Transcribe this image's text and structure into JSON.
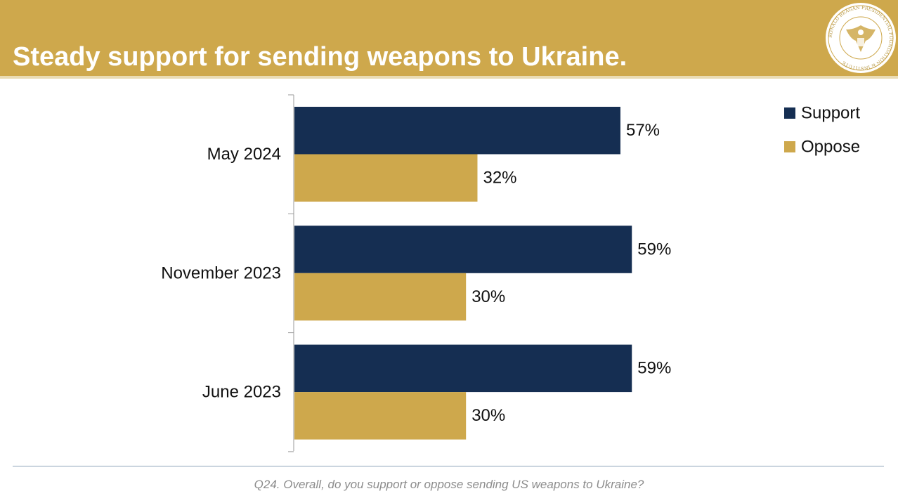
{
  "header": {
    "title": "Steady support for sending weapons to Ukraine.",
    "logo_text": "RONALD REAGAN PRESIDENTIAL FOUNDATION & INSTITUTE"
  },
  "colors": {
    "header_bg": "#cea84c",
    "support": "#152e52",
    "oppose": "#cea84c",
    "footnote": "#8c8c8c"
  },
  "chart_data": {
    "type": "bar",
    "orientation": "horizontal",
    "categories": [
      "May 2024",
      "November 2023",
      "June 2023"
    ],
    "series": [
      {
        "name": "Support",
        "color": "#152e52",
        "values": [
          57,
          59,
          59
        ],
        "labels": [
          "57%",
          "59%",
          "59%"
        ]
      },
      {
        "name": "Oppose",
        "color": "#cea84c",
        "values": [
          32,
          30,
          30
        ],
        "labels": [
          "32%",
          "30%",
          "30%"
        ]
      }
    ],
    "xlim": [
      0,
      100
    ],
    "legend_position": "top-right",
    "grid": false
  },
  "footnote": "Q24. Overall, do you support or oppose sending US weapons to Ukraine?"
}
